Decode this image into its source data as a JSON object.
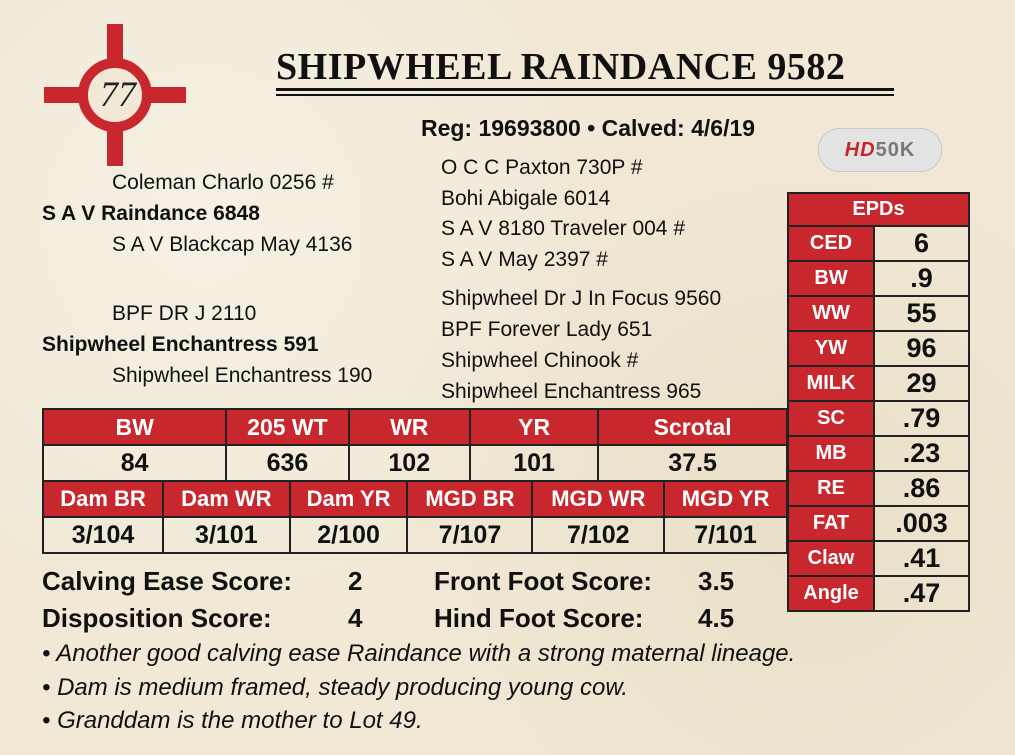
{
  "lot": {
    "number": "77"
  },
  "title": "SHIPWHEEL RAINDANCE 9582",
  "reg_line": "Reg: 19693800 • Calved: 4/6/19",
  "badge": {
    "hd": "HD",
    "k": "50K"
  },
  "pedigree": {
    "sire_sire": "Coleman Charlo 0256 #",
    "sire": "S A V Raindance 6848",
    "sire_dam": "S A V Blackcap May 4136",
    "ss_sire": "O C C Paxton 730P #",
    "ss_dam": "Bohi Abigale 6014",
    "sd_sire": "S A V 8180 Traveler 004 #",
    "sd_dam": "S A V May 2397 #",
    "dam_sire": "BPF DR J 2110",
    "dam": "Shipwheel Enchantress 591",
    "dam_dam": "Shipwheel Enchantress 190",
    "ds_sire": "Shipwheel Dr J In Focus 9560",
    "ds_dam": "BPF Forever Lady 651",
    "dd_sire": "Shipwheel Chinook #",
    "dd_dam": "Shipwheel Enchantress 965"
  },
  "performance": {
    "headers": [
      "BW",
      "205 WT",
      "WR",
      "YR",
      "Scrotal"
    ],
    "values": [
      "84",
      "636",
      "102",
      "101",
      "37.5"
    ]
  },
  "dam_ratios": {
    "headers": [
      "Dam BR",
      "Dam WR",
      "Dam YR",
      "MGD BR",
      "MGD WR",
      "MGD YR"
    ],
    "values": [
      "3/104",
      "3/101",
      "2/100",
      "7/107",
      "7/102",
      "7/101"
    ]
  },
  "epds": {
    "header": "EPDs",
    "rows": [
      {
        "label": "CED",
        "value": "6"
      },
      {
        "label": "BW",
        "value": ".9"
      },
      {
        "label": "WW",
        "value": "55"
      },
      {
        "label": "YW",
        "value": "96"
      },
      {
        "label": "MILK",
        "value": "29"
      },
      {
        "label": "SC",
        "value": ".79"
      },
      {
        "label": "MB",
        "value": ".23"
      },
      {
        "label": "RE",
        "value": ".86"
      },
      {
        "label": "FAT",
        "value": ".003"
      },
      {
        "label": "Claw",
        "value": ".41"
      },
      {
        "label": "Angle",
        "value": ".47"
      }
    ]
  },
  "scores": {
    "calving_label": "Calving Ease Score:",
    "calving_value": "2",
    "disposition_label": "Disposition Score:",
    "disposition_value": "4",
    "front_label": "Front Foot Score:",
    "front_value": "3.5",
    "hind_label": "Hind Foot Score:",
    "hind_value": "4.5"
  },
  "notes": [
    "Another good calving ease Raindance with a strong maternal lineage.",
    "Dam is medium framed, steady producing young cow.",
    "Granddam is the mother to Lot 49."
  ],
  "colors": {
    "accent_red": "#c8282d",
    "background": "#f1e9d6"
  }
}
